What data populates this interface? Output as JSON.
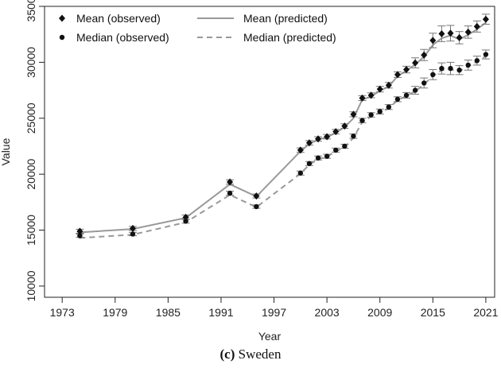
{
  "chart_data": {
    "type": "line",
    "caption_label": "(c)",
    "caption_text": "Sweden",
    "xlabel": "Year",
    "ylabel": "Value",
    "xlim": [
      1971,
      2022
    ],
    "ylim": [
      9000,
      35000
    ],
    "x_ticks": [
      1973,
      1979,
      1985,
      1991,
      1997,
      2003,
      2009,
      2015,
      2021
    ],
    "y_ticks": [
      10000,
      15000,
      20000,
      25000,
      30000,
      35000
    ],
    "legend_position": "top-left",
    "grid": false,
    "colors": {
      "observed": "#111111",
      "predicted": "#999999",
      "errorbar": "#777777"
    },
    "legend": [
      {
        "label": "Mean (observed)",
        "style": "diamond"
      },
      {
        "label": "Median (observed)",
        "style": "circle"
      },
      {
        "label": "Mean (predicted)",
        "style": "solid"
      },
      {
        "label": "Median (predicted)",
        "style": "dashed"
      }
    ],
    "years": [
      1975,
      1981,
      1987,
      1992,
      1995,
      2000,
      2001,
      2002,
      2003,
      2004,
      2005,
      2006,
      2007,
      2008,
      2009,
      2010,
      2011,
      2012,
      2013,
      2014,
      2015,
      2016,
      2017,
      2018,
      2019,
      2020,
      2021
    ],
    "series": [
      {
        "name": "Mean (observed)",
        "marker": "diamond",
        "values": [
          14900,
          15150,
          16150,
          19300,
          18050,
          22150,
          22800,
          23150,
          23350,
          23800,
          24300,
          25350,
          26800,
          27050,
          27600,
          27950,
          28900,
          29350,
          29950,
          30650,
          31950,
          32550,
          32600,
          32200,
          32700,
          33200,
          33850
        ],
        "error": [
          180,
          180,
          200,
          200,
          180,
          200,
          200,
          200,
          200,
          200,
          200,
          220,
          220,
          220,
          250,
          250,
          250,
          300,
          450,
          500,
          650,
          700,
          700,
          550,
          550,
          500,
          450
        ]
      },
      {
        "name": "Median (observed)",
        "marker": "circle",
        "values": [
          14500,
          14650,
          15800,
          18300,
          17100,
          20100,
          20950,
          21450,
          21600,
          22150,
          22500,
          23400,
          24800,
          25300,
          25600,
          26000,
          26700,
          27050,
          27500,
          28150,
          28900,
          29450,
          29450,
          29300,
          29750,
          30150,
          30700
        ],
        "error": [
          150,
          150,
          180,
          180,
          150,
          180,
          180,
          180,
          180,
          180,
          180,
          200,
          200,
          200,
          220,
          220,
          220,
          250,
          350,
          450,
          450,
          500,
          550,
          400,
          450,
          400,
          400
        ]
      },
      {
        "name": "Mean (predicted)",
        "line": "solid",
        "values": [
          14800,
          15100,
          16100,
          19100,
          18000,
          22050,
          22700,
          23100,
          23300,
          23700,
          24200,
          25000,
          26650,
          26950,
          27450,
          27850,
          28750,
          29250,
          29800,
          30500,
          31550,
          32150,
          32400,
          32050,
          32450,
          32950,
          33550
        ]
      },
      {
        "name": "Median (predicted)",
        "line": "dashed",
        "values": [
          14300,
          14600,
          15700,
          18150,
          17050,
          20050,
          20850,
          21350,
          21550,
          22050,
          22400,
          23250,
          24650,
          25150,
          25500,
          25900,
          26600,
          27000,
          27400,
          28050,
          28750,
          29300,
          29350,
          29200,
          29650,
          30050,
          30550
        ]
      }
    ]
  }
}
